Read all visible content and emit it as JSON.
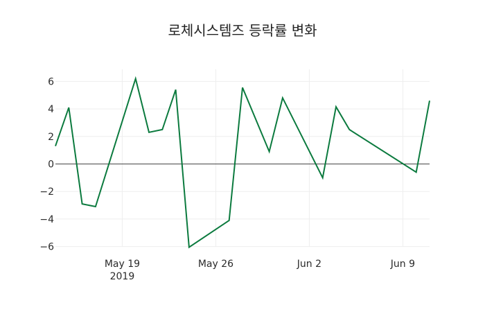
{
  "chart_data": {
    "type": "line",
    "title": "로체시스템즈 등락률 변화",
    "xlabel": "",
    "ylabel": "",
    "x": [
      "2019-05-14",
      "2019-05-15",
      "2019-05-16",
      "2019-05-17",
      "2019-05-20",
      "2019-05-21",
      "2019-05-22",
      "2019-05-23",
      "2019-05-24",
      "2019-05-27",
      "2019-05-28",
      "2019-05-30",
      "2019-05-31",
      "2019-06-03",
      "2019-06-04",
      "2019-06-05",
      "2019-06-10",
      "2019-06-11"
    ],
    "series": [
      {
        "name": "등락률",
        "color": "#0b7a3e",
        "values": [
          1.3,
          4.1,
          -2.9,
          -3.1,
          6.2,
          2.3,
          2.5,
          5.4,
          -6.05,
          -4.1,
          5.55,
          0.9,
          4.8,
          -1.0,
          4.15,
          2.5,
          -0.6,
          4.6
        ]
      }
    ],
    "x_ticks": [
      {
        "label": "May 19",
        "sublabel": "2019",
        "date": "2019-05-19"
      },
      {
        "label": "May 26",
        "sublabel": "",
        "date": "2019-05-26"
      },
      {
        "label": "Jun 2",
        "sublabel": "",
        "date": "2019-06-02"
      },
      {
        "label": "Jun 9",
        "sublabel": "",
        "date": "2019-06-09"
      }
    ],
    "y_ticks": [
      6,
      4,
      2,
      0,
      -2,
      -4,
      -6
    ],
    "y_tick_labels": [
      "6",
      "4",
      "2",
      "0",
      "−2",
      "−4",
      "−6"
    ],
    "ylim": [
      -6.6,
      6.9
    ],
    "xlim": [
      "2019-05-14",
      "2019-06-11"
    ],
    "grid": true,
    "legend": false,
    "zero_line": true
  }
}
